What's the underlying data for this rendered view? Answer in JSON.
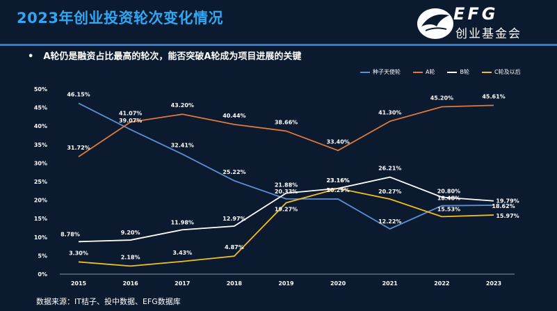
{
  "header": {
    "title": "2023年创业投资轮次变化情况",
    "bullet": "A轮仍是融资占比最高的轮次，能否突破A轮成为项目进展的关键",
    "logo_en": "EFG",
    "logo_cn": "创业基金会"
  },
  "footer": {
    "source": "数据来源：IT桔子、投中数据、EFG数据库"
  },
  "colors": {
    "background": "#0b1a2f",
    "title": "#2ea8f5",
    "rule": "#2a7fd4"
  },
  "chart_data": {
    "type": "line",
    "categories": [
      "2015",
      "2016",
      "2017",
      "2018",
      "2019",
      "2020",
      "2021",
      "2022",
      "2023"
    ],
    "ylim": [
      0,
      50
    ],
    "yticks": [
      "0%",
      "5%",
      "10%",
      "15%",
      "20%",
      "25%",
      "30%",
      "35%",
      "40%",
      "45%",
      "50%"
    ],
    "legend_position": "top-right",
    "grid": false,
    "series": [
      {
        "name": "种子天使轮",
        "color": "#5b8fd6",
        "values": [
          46.15,
          39.07,
          32.41,
          25.22,
          20.33,
          20.29,
          12.22,
          18.48,
          18.62
        ],
        "labels": [
          "46.15%",
          "39.07%",
          "32.41%",
          "25.22%",
          "20.33%",
          "20.29%",
          "12.22%",
          "18.48%",
          "18.62%"
        ]
      },
      {
        "name": "A轮",
        "color": "#e07b39",
        "values": [
          31.72,
          41.07,
          43.2,
          40.44,
          38.66,
          33.4,
          41.3,
          45.2,
          45.61
        ],
        "labels": [
          "31.72%",
          "41.07%",
          "43.20%",
          "40.44%",
          "38.66%",
          "33.40%",
          "41.30%",
          "45.20%",
          "45.61%"
        ]
      },
      {
        "name": "B轮",
        "color": "#ffffff",
        "values": [
          8.78,
          9.2,
          11.98,
          12.97,
          21.88,
          23.16,
          26.21,
          20.8,
          19.79
        ],
        "labels": [
          "8.78%",
          "9.20%",
          "11.98%",
          "12.97%",
          "21.88%",
          "23.16%",
          "26.21%",
          "20.80%",
          "19.79%"
        ]
      },
      {
        "name": "C轮及以后",
        "color": "#f2c01c",
        "values": [
          3.3,
          2.18,
          3.43,
          4.87,
          19.27,
          23.16,
          20.27,
          15.53,
          15.97
        ],
        "labels": [
          "3.30%",
          "2.18%",
          "3.43%",
          "4.87%",
          "19.27%",
          "23.16%",
          "20.27%",
          "15.53%",
          "15.97%"
        ]
      }
    ]
  }
}
